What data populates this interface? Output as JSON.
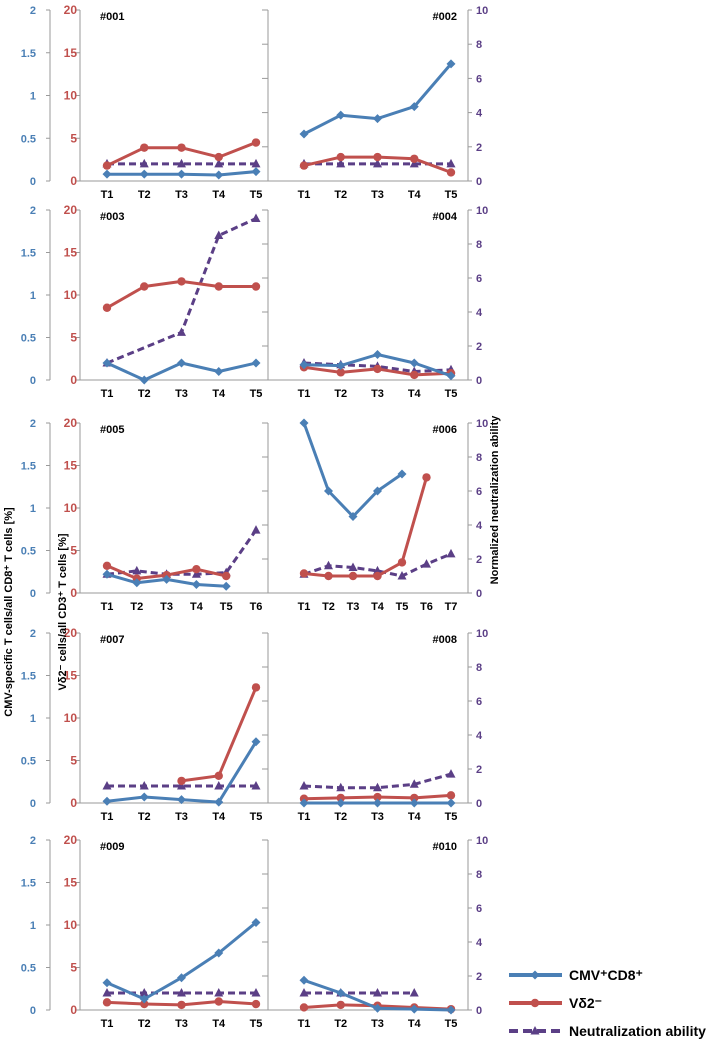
{
  "colors": {
    "cmv": "#4a7fb5",
    "vd2": "#c0504d",
    "neut": "#5b3f86",
    "axis": "#9a9a9a",
    "text": "#000000"
  },
  "axes": {
    "left_ticks": [
      "0",
      "0.5",
      "1",
      "1.5",
      "2"
    ],
    "mid_ticks": [
      "0",
      "5",
      "10",
      "15",
      "20"
    ],
    "right_ticks": [
      "0",
      "2",
      "4",
      "6",
      "8",
      "10"
    ],
    "left_label": "CMV-specific T cells/all CD8⁺ T cells [%]",
    "mid_label": "Vδ2⁻ cells/all CD3⁺ T cells [%]",
    "right_label": "Normalized neutralization ability"
  },
  "legend": [
    {
      "key": "cmv",
      "label": "CMV⁺CD8⁺"
    },
    {
      "key": "vd2",
      "label": "Vδ2⁻"
    },
    {
      "key": "neut",
      "label": "Neutralization ability"
    }
  ],
  "chart_data": [
    {
      "type": "line",
      "title": "#001",
      "categories": [
        "T1",
        "T2",
        "T3",
        "T4",
        "T5"
      ],
      "series": [
        {
          "name": "CMV⁺CD8⁺",
          "axis": "left",
          "values": [
            0.08,
            0.08,
            0.08,
            0.07,
            0.11
          ]
        },
        {
          "name": "Vδ2⁻",
          "axis": "mid",
          "values": [
            1.8,
            3.9,
            3.9,
            2.8,
            4.5
          ]
        },
        {
          "name": "Neutralization ability",
          "axis": "right",
          "values": [
            1.0,
            1.0,
            1.0,
            1.0,
            1.0
          ]
        }
      ]
    },
    {
      "type": "line",
      "title": "#002",
      "categories": [
        "T1",
        "T2",
        "T3",
        "T4",
        "T5"
      ],
      "series": [
        {
          "name": "CMV⁺CD8⁺",
          "axis": "left",
          "values": [
            0.55,
            0.77,
            0.73,
            0.87,
            1.37
          ]
        },
        {
          "name": "Vδ2⁻",
          "axis": "mid",
          "values": [
            1.8,
            2.8,
            2.8,
            2.6,
            1.0
          ]
        },
        {
          "name": "Neutralization ability",
          "axis": "right",
          "values": [
            1.0,
            1.0,
            1.0,
            1.0,
            1.0
          ]
        }
      ]
    },
    {
      "type": "line",
      "title": "#003",
      "categories": [
        "T1",
        "T2",
        "T3",
        "T4",
        "T5"
      ],
      "series": [
        {
          "name": "CMV⁺CD8⁺",
          "axis": "left",
          "values": [
            0.2,
            0.0,
            0.2,
            0.1,
            0.2
          ]
        },
        {
          "name": "Vδ2⁻",
          "axis": "mid",
          "values": [
            8.5,
            11.0,
            11.6,
            11.0,
            11.0
          ]
        },
        {
          "name": "Neutralization ability",
          "axis": "right",
          "values": [
            1.0,
            null,
            2.8,
            8.5,
            9.5
          ]
        }
      ]
    },
    {
      "type": "line",
      "title": "#004",
      "categories": [
        "T1",
        "T2",
        "T3",
        "T4",
        "T5"
      ],
      "series": [
        {
          "name": "CMV⁺CD8⁺",
          "axis": "left",
          "values": [
            0.18,
            0.17,
            0.3,
            0.2,
            0.05
          ]
        },
        {
          "name": "Vδ2⁻",
          "axis": "mid",
          "values": [
            1.5,
            0.9,
            1.3,
            0.6,
            0.8
          ]
        },
        {
          "name": "Neutralization ability",
          "axis": "right",
          "values": [
            1.0,
            0.9,
            0.8,
            0.5,
            0.6
          ]
        }
      ]
    },
    {
      "type": "line",
      "title": "#005",
      "categories": [
        "T1",
        "T2",
        "T3",
        "T4",
        "T5",
        "T6"
      ],
      "series": [
        {
          "name": "CMV⁺CD8⁺",
          "axis": "left",
          "values": [
            0.22,
            0.12,
            0.16,
            0.1,
            0.08,
            null
          ]
        },
        {
          "name": "Vδ2⁻",
          "axis": "mid",
          "values": [
            3.2,
            1.7,
            2.1,
            2.8,
            2.0,
            null
          ]
        },
        {
          "name": "Neutralization ability",
          "axis": "right",
          "values": [
            1.1,
            1.3,
            1.1,
            1.1,
            1.2,
            3.7
          ]
        }
      ]
    },
    {
      "type": "line",
      "title": "#006",
      "categories": [
        "T1",
        "T2",
        "T3",
        "T4",
        "T5",
        "T6",
        "T7"
      ],
      "series": [
        {
          "name": "CMV⁺CD8⁺",
          "axis": "left",
          "values": [
            2.0,
            1.2,
            0.9,
            1.2,
            1.4,
            null,
            null
          ]
        },
        {
          "name": "Vδ2⁻",
          "axis": "mid",
          "values": [
            2.3,
            2.0,
            2.0,
            2.0,
            3.6,
            13.6,
            null
          ]
        },
        {
          "name": "Neutralization ability",
          "axis": "right",
          "values": [
            1.1,
            1.6,
            1.5,
            1.3,
            1.0,
            1.7,
            2.3
          ]
        }
      ]
    },
    {
      "type": "line",
      "title": "#007",
      "categories": [
        "T1",
        "T2",
        "T3",
        "T4",
        "T5"
      ],
      "series": [
        {
          "name": "CMV⁺CD8⁺",
          "axis": "left",
          "values": [
            0.02,
            0.07,
            0.04,
            0.01,
            0.72
          ]
        },
        {
          "name": "Vδ2⁻",
          "axis": "mid",
          "values": [
            null,
            null,
            2.6,
            3.2,
            13.6
          ]
        },
        {
          "name": "Neutralization ability",
          "axis": "right",
          "values": [
            1.0,
            1.0,
            1.0,
            1.0,
            1.0
          ]
        }
      ]
    },
    {
      "type": "line",
      "title": "#008",
      "categories": [
        "T1",
        "T2",
        "T3",
        "T4",
        "T5"
      ],
      "series": [
        {
          "name": "CMV⁺CD8⁺",
          "axis": "left",
          "values": [
            0.0,
            0.0,
            0.0,
            0.0,
            0.0
          ]
        },
        {
          "name": "Vδ2⁻",
          "axis": "mid",
          "values": [
            0.5,
            0.6,
            0.7,
            0.6,
            0.9
          ]
        },
        {
          "name": "Neutralization ability",
          "axis": "right",
          "values": [
            1.0,
            0.9,
            0.9,
            1.1,
            1.7
          ]
        }
      ]
    },
    {
      "type": "line",
      "title": "#009",
      "categories": [
        "T1",
        "T2",
        "T3",
        "T4",
        "T5"
      ],
      "series": [
        {
          "name": "CMV⁺CD8⁺",
          "axis": "left",
          "values": [
            0.32,
            0.13,
            0.38,
            0.67,
            1.03
          ]
        },
        {
          "name": "Vδ2⁻",
          "axis": "mid",
          "values": [
            0.9,
            0.7,
            0.6,
            1.0,
            0.7
          ]
        },
        {
          "name": "Neutralization ability",
          "axis": "right",
          "values": [
            1.0,
            1.0,
            1.0,
            1.0,
            1.0
          ]
        }
      ]
    },
    {
      "type": "line",
      "title": "#010",
      "categories": [
        "T1",
        "T2",
        "T3",
        "T4",
        "T5"
      ],
      "series": [
        {
          "name": "CMV⁺CD8⁺",
          "axis": "left",
          "values": [
            0.35,
            0.2,
            0.02,
            0.01,
            0.0
          ]
        },
        {
          "name": "Vδ2⁻",
          "axis": "mid",
          "values": [
            0.3,
            0.6,
            0.5,
            0.3,
            0.1
          ]
        },
        {
          "name": "Neutralization ability",
          "axis": "right",
          "values": [
            1.0,
            1.0,
            1.0,
            1.0,
            null
          ]
        }
      ]
    }
  ]
}
